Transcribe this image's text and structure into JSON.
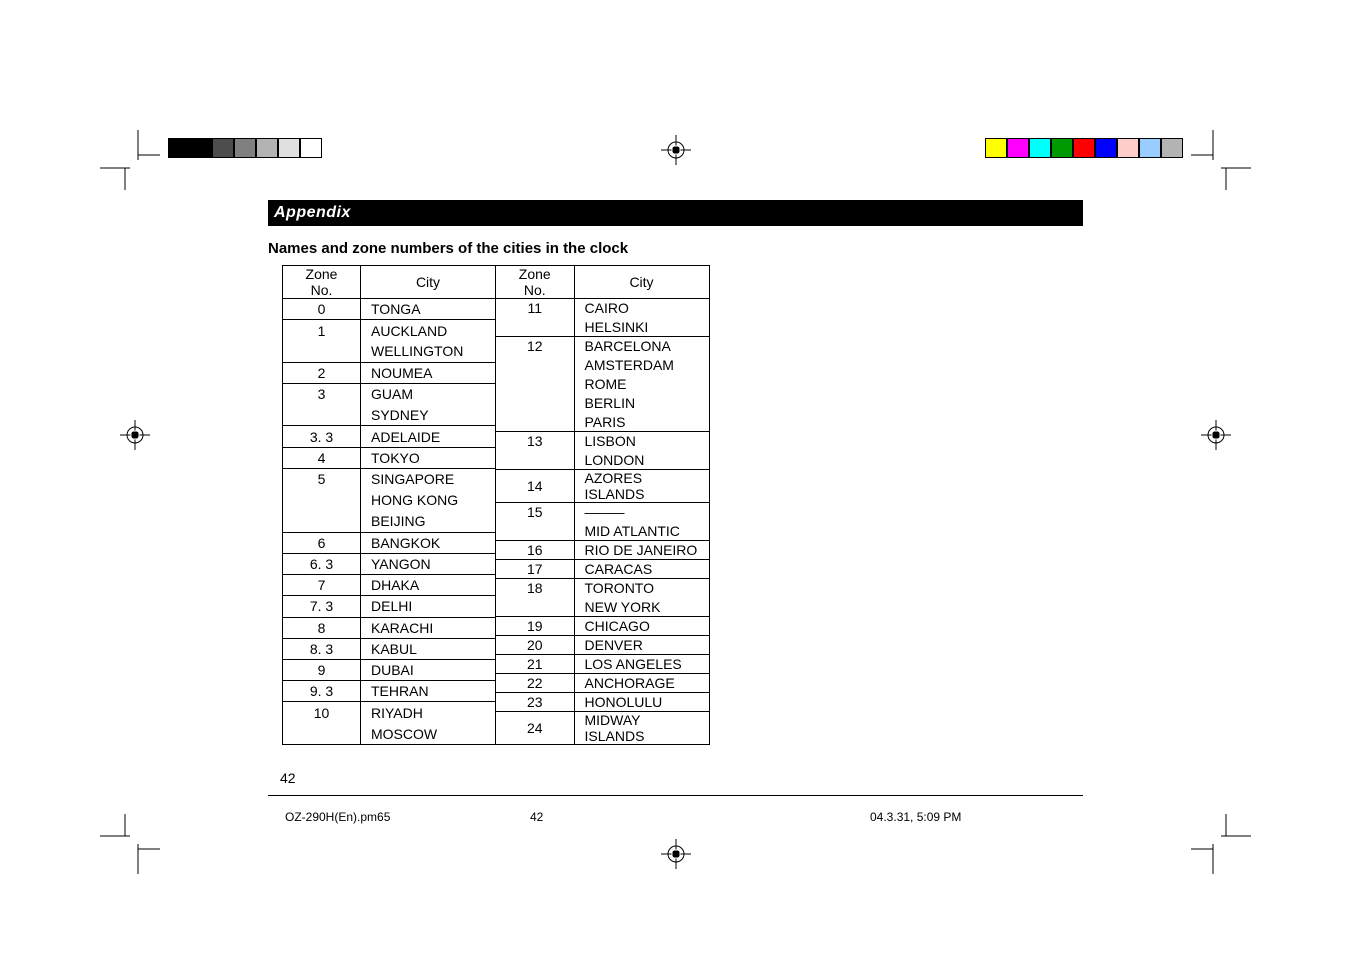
{
  "crop_color": "#000000",
  "color_bar_left": [
    "#000000",
    "#000000",
    "#4d4d4d",
    "#808080",
    "#b3b3b3",
    "#e0e0e0",
    "#ffffff"
  ],
  "color_bar_right": [
    "#ffff00",
    "#ff00ff",
    "#00ffff",
    "#009900",
    "#ff0000",
    "#0000ff",
    "#ffcccc",
    "#99ccff",
    "#b3b3b3"
  ],
  "appendix_label": "Appendix",
  "heading": "Names and zone numbers of the cities in the clock",
  "header_zone": "Zone No.",
  "header_city": "City",
  "left_rows": [
    {
      "zone": "0",
      "city": "TONGA",
      "top": true,
      "bottom": true
    },
    {
      "zone": "1",
      "city": "AUCKLAND",
      "top": true,
      "bottom": false
    },
    {
      "zone": "",
      "city": "WELLINGTON",
      "top": false,
      "bottom": true
    },
    {
      "zone": "2",
      "city": "NOUMEA",
      "top": true,
      "bottom": true
    },
    {
      "zone": "3",
      "city": "GUAM",
      "top": true,
      "bottom": false
    },
    {
      "zone": "",
      "city": "SYDNEY",
      "top": false,
      "bottom": true
    },
    {
      "zone": "3. 3",
      "city": "ADELAIDE",
      "top": true,
      "bottom": true
    },
    {
      "zone": "4",
      "city": "TOKYO",
      "top": true,
      "bottom": true
    },
    {
      "zone": "5",
      "city": "SINGAPORE",
      "top": true,
      "bottom": false
    },
    {
      "zone": "",
      "city": "HONG KONG",
      "top": false,
      "bottom": false
    },
    {
      "zone": "",
      "city": "BEIJING",
      "top": false,
      "bottom": true
    },
    {
      "zone": "6",
      "city": "BANGKOK",
      "top": true,
      "bottom": true
    },
    {
      "zone": "6. 3",
      "city": "YANGON",
      "top": true,
      "bottom": true
    },
    {
      "zone": "7",
      "city": "DHAKA",
      "top": true,
      "bottom": true
    },
    {
      "zone": "7. 3",
      "city": "DELHI",
      "top": true,
      "bottom": true
    },
    {
      "zone": "8",
      "city": "KARACHI",
      "top": true,
      "bottom": true
    },
    {
      "zone": "8. 3",
      "city": "KABUL",
      "top": true,
      "bottom": true
    },
    {
      "zone": "9",
      "city": "DUBAI",
      "top": true,
      "bottom": true
    },
    {
      "zone": "9. 3",
      "city": "TEHRAN",
      "top": true,
      "bottom": true
    },
    {
      "zone": "10",
      "city": "RIYADH",
      "top": true,
      "bottom": false
    },
    {
      "zone": "",
      "city": "MOSCOW",
      "top": false,
      "bottom": true
    }
  ],
  "right_rows": [
    {
      "zone": "11",
      "city": "CAIRO",
      "top": true,
      "bottom": false
    },
    {
      "zone": "",
      "city": "HELSINKI",
      "top": false,
      "bottom": true
    },
    {
      "zone": "12",
      "city": "BARCELONA",
      "top": true,
      "bottom": false
    },
    {
      "zone": "",
      "city": "AMSTERDAM",
      "top": false,
      "bottom": false
    },
    {
      "zone": "",
      "city": "ROME",
      "top": false,
      "bottom": false
    },
    {
      "zone": "",
      "city": "BERLIN",
      "top": false,
      "bottom": false
    },
    {
      "zone": "",
      "city": "PARIS",
      "top": false,
      "bottom": true
    },
    {
      "zone": "13",
      "city": "LISBON",
      "top": true,
      "bottom": false
    },
    {
      "zone": "",
      "city": "LONDON",
      "top": false,
      "bottom": true
    },
    {
      "zone": "14",
      "city": "AZORES ISLANDS",
      "top": true,
      "bottom": true
    },
    {
      "zone": "15",
      "city": "———",
      "top": true,
      "bottom": false,
      "dashes": true
    },
    {
      "zone": "",
      "city": "MID ATLANTIC",
      "top": false,
      "bottom": true
    },
    {
      "zone": "16",
      "city": "RIO DE JANEIRO",
      "top": true,
      "bottom": true
    },
    {
      "zone": "17",
      "city": "CARACAS",
      "top": true,
      "bottom": true
    },
    {
      "zone": "18",
      "city": "TORONTO",
      "top": true,
      "bottom": false
    },
    {
      "zone": "",
      "city": "NEW YORK",
      "top": false,
      "bottom": true
    },
    {
      "zone": "19",
      "city": "CHICAGO",
      "top": true,
      "bottom": true
    },
    {
      "zone": "20",
      "city": "DENVER",
      "top": true,
      "bottom": true
    },
    {
      "zone": "21",
      "city": "LOS ANGELES",
      "top": true,
      "bottom": true
    },
    {
      "zone": "22",
      "city": "ANCHORAGE",
      "top": true,
      "bottom": true
    },
    {
      "zone": "23",
      "city": "HONOLULU",
      "top": true,
      "bottom": true
    },
    {
      "zone": "24",
      "city": "MIDWAY ISLANDS",
      "top": true,
      "bottom": true
    }
  ],
  "page_number": "42",
  "footer_file": "OZ-290H(En).pm65",
  "footer_page": "42",
  "footer_date": "04.3.31, 5:09 PM"
}
